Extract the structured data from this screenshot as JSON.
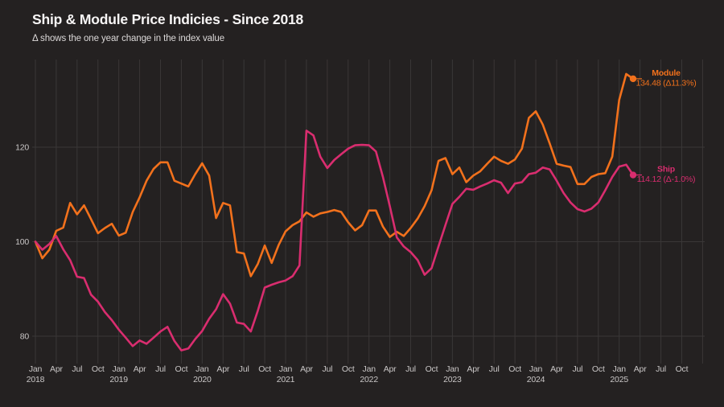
{
  "header": {
    "title": "Ship & Module Price Indicies - Since 2018",
    "subtitle": "Δ shows the one year change in the index value"
  },
  "colors": {
    "background": "#242121",
    "gridline": "#3a3737",
    "axis_text": "#c9c6c6",
    "title_text": "#f7f5f5",
    "subtitle_text": "#dcd9d9",
    "module_orange": "#f2711c",
    "ship_pink": "#d92d6f"
  },
  "chart_data": {
    "type": "line",
    "title": "Ship & Module Price Indicies - Since 2018",
    "subtitle": "Δ shows the one year change in the index value",
    "xlabel": "",
    "ylabel": "",
    "x_start_month": "Jan 2018",
    "x_end_month": "Mar 2025",
    "x_tick_months": [
      "Jan",
      "Apr",
      "Jul",
      "Oct"
    ],
    "years": [
      "2018",
      "2019",
      "2020",
      "2021",
      "2022",
      "2023",
      "2024",
      "2025"
    ],
    "y_ticks": [
      "80",
      "100",
      "120"
    ],
    "ylim": [
      74,
      141
    ],
    "grid": true,
    "legend_position": "end-of-line",
    "series": [
      {
        "name": "Module",
        "color": "#f2711c",
        "end_value_label": "134.48 (Δ11.3%)",
        "end_value": 134.48,
        "yoy_change": "11.3%",
        "values": [
          100.0,
          96.5,
          98.3,
          102.3,
          103.0,
          108.2,
          105.8,
          107.7,
          104.8,
          101.8,
          102.9,
          103.8,
          101.3,
          101.9,
          106.3,
          109.4,
          112.9,
          115.4,
          116.8,
          116.8,
          112.9,
          112.3,
          111.7,
          114.3,
          116.6,
          114.0,
          105.0,
          108.2,
          107.7,
          97.8,
          97.5,
          92.7,
          95.3,
          99.2,
          95.5,
          99.3,
          102.2,
          103.5,
          104.3,
          106.2,
          105.3,
          106.0,
          106.3,
          106.7,
          106.3,
          104.1,
          102.4,
          103.5,
          106.6,
          106.6,
          103.2,
          101.0,
          102.1,
          101.2,
          102.9,
          104.9,
          107.5,
          110.9,
          117.1,
          117.7,
          114.3,
          115.7,
          112.6,
          114.0,
          114.9,
          116.5,
          118.0,
          117.1,
          116.5,
          117.4,
          119.7,
          126.2,
          127.6,
          124.8,
          120.8,
          116.5,
          116.1,
          115.8,
          112.2,
          112.2,
          113.7,
          114.3,
          114.5,
          118.0,
          130.0,
          135.5,
          134.48
        ]
      },
      {
        "name": "Ship",
        "color": "#d92d6f",
        "end_value_label": "114.12 (Δ-1.0%)",
        "end_value": 114.12,
        "yoy_change": "-1.0%",
        "values": [
          100.0,
          98.3,
          99.5,
          101.2,
          98.4,
          96.1,
          92.6,
          92.3,
          88.8,
          87.3,
          85.1,
          83.4,
          81.4,
          79.7,
          77.9,
          79.1,
          78.4,
          79.7,
          81.0,
          82.0,
          79.0,
          77.0,
          77.4,
          79.4,
          81.1,
          83.7,
          85.7,
          88.9,
          86.9,
          82.9,
          82.6,
          81.0,
          85.4,
          90.3,
          90.9,
          91.4,
          91.8,
          92.7,
          95.0,
          123.5,
          122.5,
          118.0,
          115.6,
          117.3,
          118.5,
          119.7,
          120.4,
          120.5,
          120.4,
          119.1,
          113.7,
          107.5,
          100.9,
          99.0,
          97.8,
          96.1,
          93.0,
          94.4,
          99.0,
          103.5,
          108.0,
          109.5,
          111.2,
          111.0,
          111.7,
          112.3,
          113.0,
          112.5,
          110.3,
          112.3,
          112.6,
          114.3,
          114.6,
          115.7,
          115.3,
          112.9,
          110.3,
          108.3,
          106.9,
          106.4,
          107.0,
          108.3,
          110.9,
          113.7,
          115.9,
          116.3,
          114.12
        ]
      }
    ]
  }
}
